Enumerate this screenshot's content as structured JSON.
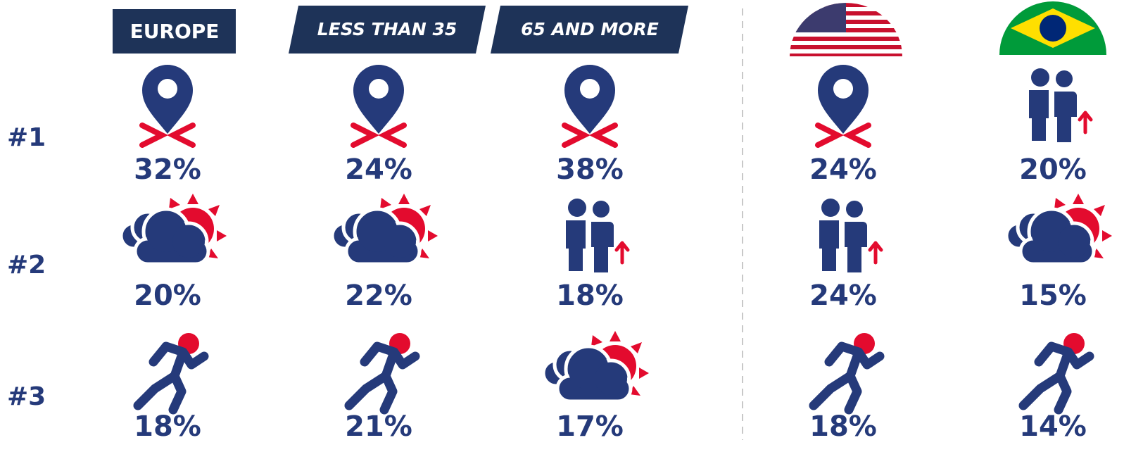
{
  "ranks": [
    "#1",
    "#2",
    "#3"
  ],
  "columns": [
    {
      "label": "EUROPE",
      "values": [
        "32%",
        "20%",
        "18%"
      ]
    },
    {
      "label": "LESS THAN 35",
      "values": [
        "24%",
        "22%",
        "21%"
      ]
    },
    {
      "label": "65 AND MORE",
      "values": [
        "38%",
        "18%",
        "17%"
      ]
    },
    {
      "values": [
        "24%",
        "24%",
        "18%"
      ]
    },
    {
      "values": [
        "20%",
        "15%",
        "14%"
      ]
    }
  ]
}
